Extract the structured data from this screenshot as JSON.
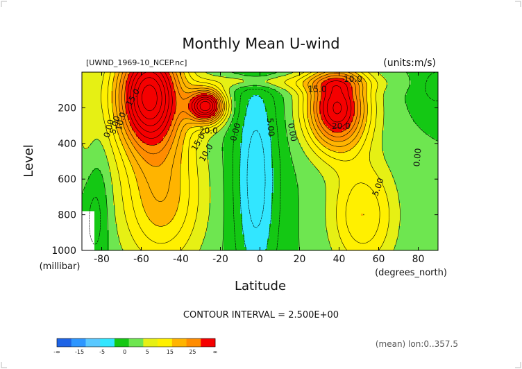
{
  "chart_data": {
    "type": "heatmap",
    "title": "Monthly Mean U-wind",
    "source_file": "[UWND_1969-10_NCEP.nc]",
    "units_label": "(units:m/s)",
    "xlabel": "Latitude",
    "x_units": "(degrees_north)",
    "ylabel": "Level",
    "y_units": "(millibar)",
    "xlim": [
      -90,
      90
    ],
    "ylim": [
      1000,
      0
    ],
    "x_ticks": [
      -80,
      -60,
      -40,
      -20,
      0,
      20,
      40,
      60,
      80
    ],
    "y_ticks": [
      200,
      400,
      600,
      800,
      1000
    ],
    "contour_interval_text": "CONTOUR INTERVAL = 2.500E+00",
    "averaging_text": "(mean) lon:0..357.5",
    "color_levels": [
      -20,
      -15,
      -10,
      -5,
      0,
      2.5,
      5,
      10,
      15,
      20,
      25
    ],
    "colorbar": {
      "colors": [
        "#1e64e6",
        "#2d96ff",
        "#5ac8ff",
        "#32e6ff",
        "#14c814",
        "#6ee650",
        "#e6f014",
        "#fff000",
        "#ffb400",
        "#ff8c00",
        "#f50000"
      ],
      "tick_labels": [
        "-∞",
        "-15",
        "-5",
        "0",
        "5",
        "15",
        "25",
        "∞"
      ]
    },
    "contour_labels": [
      {
        "text": "0.00",
        "lat": -75,
        "lev": 320,
        "angle": -75
      },
      {
        "text": "10.0",
        "lat": -69,
        "lev": 280,
        "angle": -75
      },
      {
        "text": "5.00",
        "lat": -72,
        "lev": 300,
        "angle": -75
      },
      {
        "text": "15.0",
        "lat": -63,
        "lev": 150,
        "angle": -60
      },
      {
        "text": "20.0",
        "lat": -26,
        "lev": 345,
        "angle": 0
      },
      {
        "text": "15.0",
        "lat": -30,
        "lev": 400,
        "angle": -60
      },
      {
        "text": "10.0",
        "lat": -26,
        "lev": 460,
        "angle": -60
      },
      {
        "text": "0.00",
        "lat": -11,
        "lev": 340,
        "angle": -75
      },
      {
        "text": "5.00",
        "lat": 4,
        "lev": 310,
        "angle": 85
      },
      {
        "text": "0.00",
        "lat": 15,
        "lev": 340,
        "angle": 80
      },
      {
        "text": "15.0",
        "lat": 29,
        "lev": 110,
        "angle": 0
      },
      {
        "text": "10.0",
        "lat": 47,
        "lev": 55,
        "angle": 0
      },
      {
        "text": "20.0",
        "lat": 41,
        "lev": 320,
        "angle": 0
      },
      {
        "text": "5.00",
        "lat": 61,
        "lev": 650,
        "angle": -70
      },
      {
        "text": "0.00",
        "lat": 81,
        "lev": 480,
        "angle": -85
      }
    ]
  }
}
